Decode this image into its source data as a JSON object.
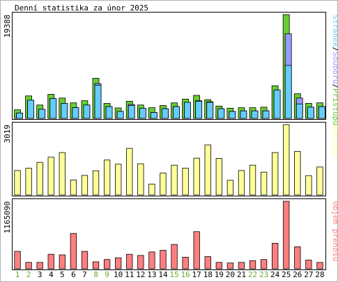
{
  "title": "Denní statistika za únor 2025",
  "colors": {
    "hits": "#66cc33",
    "files": "#9999ff",
    "pages": "#66ccff",
    "visits": "#ffff99",
    "traffic": "#ff7f80",
    "weekend_label": "#66aa33",
    "weekday_label": "#000000",
    "border": "#000000",
    "frame": "#b0b0b0"
  },
  "chart_data": [
    {
      "type": "bar",
      "id": "requests",
      "ymax_label": "19388",
      "ylim": [
        0,
        19388
      ],
      "legend": [
        {
          "text": "Stránek",
          "color_key": "pages"
        },
        {
          "text": "/",
          "color_key": "sep"
        },
        {
          "text": "Souborů",
          "color_key": "files"
        },
        {
          "text": "/",
          "color_key": "sep"
        },
        {
          "text": "Přístupů",
          "color_key": "hits"
        }
      ],
      "categories": [
        "1",
        "2",
        "3",
        "4",
        "5",
        "6",
        "7",
        "8",
        "9",
        "10",
        "11",
        "12",
        "13",
        "14",
        "15",
        "16",
        "17",
        "18",
        "19",
        "20",
        "21",
        "22",
        "23",
        "24",
        "25",
        "26",
        "27",
        "28"
      ],
      "series": [
        {
          "name": "Přístupů",
          "color_key": "hits",
          "values": [
            1600,
            4200,
            2500,
            4500,
            3800,
            2900,
            3300,
            7500,
            2800,
            1950,
            3200,
            2500,
            2000,
            2400,
            2900,
            3600,
            4300,
            3500,
            2300,
            1900,
            2000,
            2000,
            2100,
            6100,
            19388,
            4600,
            2800,
            2900
          ]
        },
        {
          "name": "Souborů",
          "color_key": "files",
          "values": [
            1000,
            3400,
            1700,
            3700,
            2800,
            2000,
            2500,
            6500,
            2200,
            1300,
            2600,
            1900,
            1100,
            1800,
            2200,
            3000,
            3300,
            3100,
            1800,
            1300,
            1400,
            1400,
            1400,
            5300,
            15800,
            3800,
            2100,
            2200
          ]
        },
        {
          "name": "Stránek",
          "color_key": "pages",
          "values": [
            1000,
            3400,
            1700,
            3700,
            2800,
            2000,
            2500,
            6200,
            2200,
            1300,
            2400,
            1900,
            1100,
            1800,
            2200,
            3000,
            3200,
            3000,
            1800,
            1300,
            1400,
            1400,
            1400,
            5300,
            9900,
            2700,
            2100,
            2200
          ]
        }
      ]
    },
    {
      "type": "bar",
      "id": "visits",
      "ymax_label": "3019",
      "ylim": [
        0,
        3019
      ],
      "legend": [
        {
          "text": "Návštěv",
          "color_key": "visits"
        }
      ],
      "categories": [
        "1",
        "2",
        "3",
        "4",
        "5",
        "6",
        "7",
        "8",
        "9",
        "10",
        "11",
        "12",
        "13",
        "14",
        "15",
        "16",
        "17",
        "18",
        "19",
        "20",
        "21",
        "22",
        "23",
        "24",
        "25",
        "26",
        "27",
        "28"
      ],
      "series": [
        {
          "name": "Návštěv",
          "color_key": "visits",
          "values": [
            1050,
            1150,
            1400,
            1620,
            1820,
            640,
            840,
            1040,
            1500,
            1320,
            2000,
            1340,
            470,
            940,
            1280,
            1150,
            1580,
            2150,
            1570,
            630,
            1050,
            1280,
            980,
            1820,
            3019,
            1870,
            830,
            1200
          ]
        }
      ]
    },
    {
      "type": "bar",
      "id": "traffic",
      "ymax_label": "1165090",
      "ylim": [
        0,
        1165090
      ],
      "legend": [
        {
          "text": "Objem přenosů",
          "color_key": "traffic"
        }
      ],
      "categories": [
        "1",
        "2",
        "3",
        "4",
        "5",
        "6",
        "7",
        "8",
        "9",
        "10",
        "11",
        "12",
        "13",
        "14",
        "15",
        "16",
        "17",
        "18",
        "19",
        "20",
        "21",
        "22",
        "23",
        "24",
        "25",
        "26",
        "27",
        "28"
      ],
      "series": [
        {
          "name": "Objem přenosů",
          "color_key": "traffic",
          "values": [
            300000,
            110000,
            110000,
            250000,
            240000,
            610000,
            300000,
            120000,
            160000,
            190000,
            250000,
            230000,
            290000,
            320000,
            420000,
            200000,
            640000,
            210000,
            110000,
            100000,
            110000,
            140000,
            160000,
            440000,
            1165090,
            380000,
            150000,
            110000
          ]
        }
      ]
    }
  ],
  "weekend_days": [
    "1",
    "2",
    "8",
    "9",
    "15",
    "16",
    "22",
    "23"
  ]
}
